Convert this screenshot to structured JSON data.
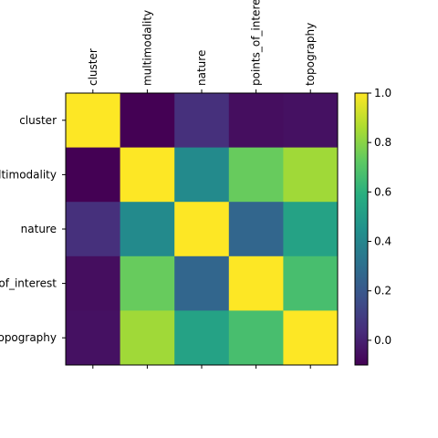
{
  "chart_data": {
    "type": "heatmap",
    "title": "",
    "xlabel": "",
    "ylabel": "",
    "x_categories": [
      "cluster",
      "multimodality",
      "nature",
      "points_of_interest",
      "topography"
    ],
    "y_categories": [
      "cluster",
      "multimodality",
      "nature",
      "points_of_interest",
      "topography"
    ],
    "values": [
      [
        1.0,
        -0.1,
        0.05,
        -0.06,
        -0.05
      ],
      [
        -0.1,
        1.0,
        0.42,
        0.74,
        0.84
      ],
      [
        0.05,
        0.42,
        1.0,
        0.26,
        0.53
      ],
      [
        -0.06,
        0.74,
        0.26,
        1.0,
        0.67
      ],
      [
        -0.05,
        0.84,
        0.53,
        0.67,
        1.0
      ]
    ],
    "vmin": -0.1,
    "vmax": 1.0,
    "colormap": "viridis",
    "colorbar_ticks": [
      "0.0",
      "0.2",
      "0.4",
      "0.6",
      "0.8",
      "1.0"
    ],
    "grid": false,
    "legend": "none"
  }
}
